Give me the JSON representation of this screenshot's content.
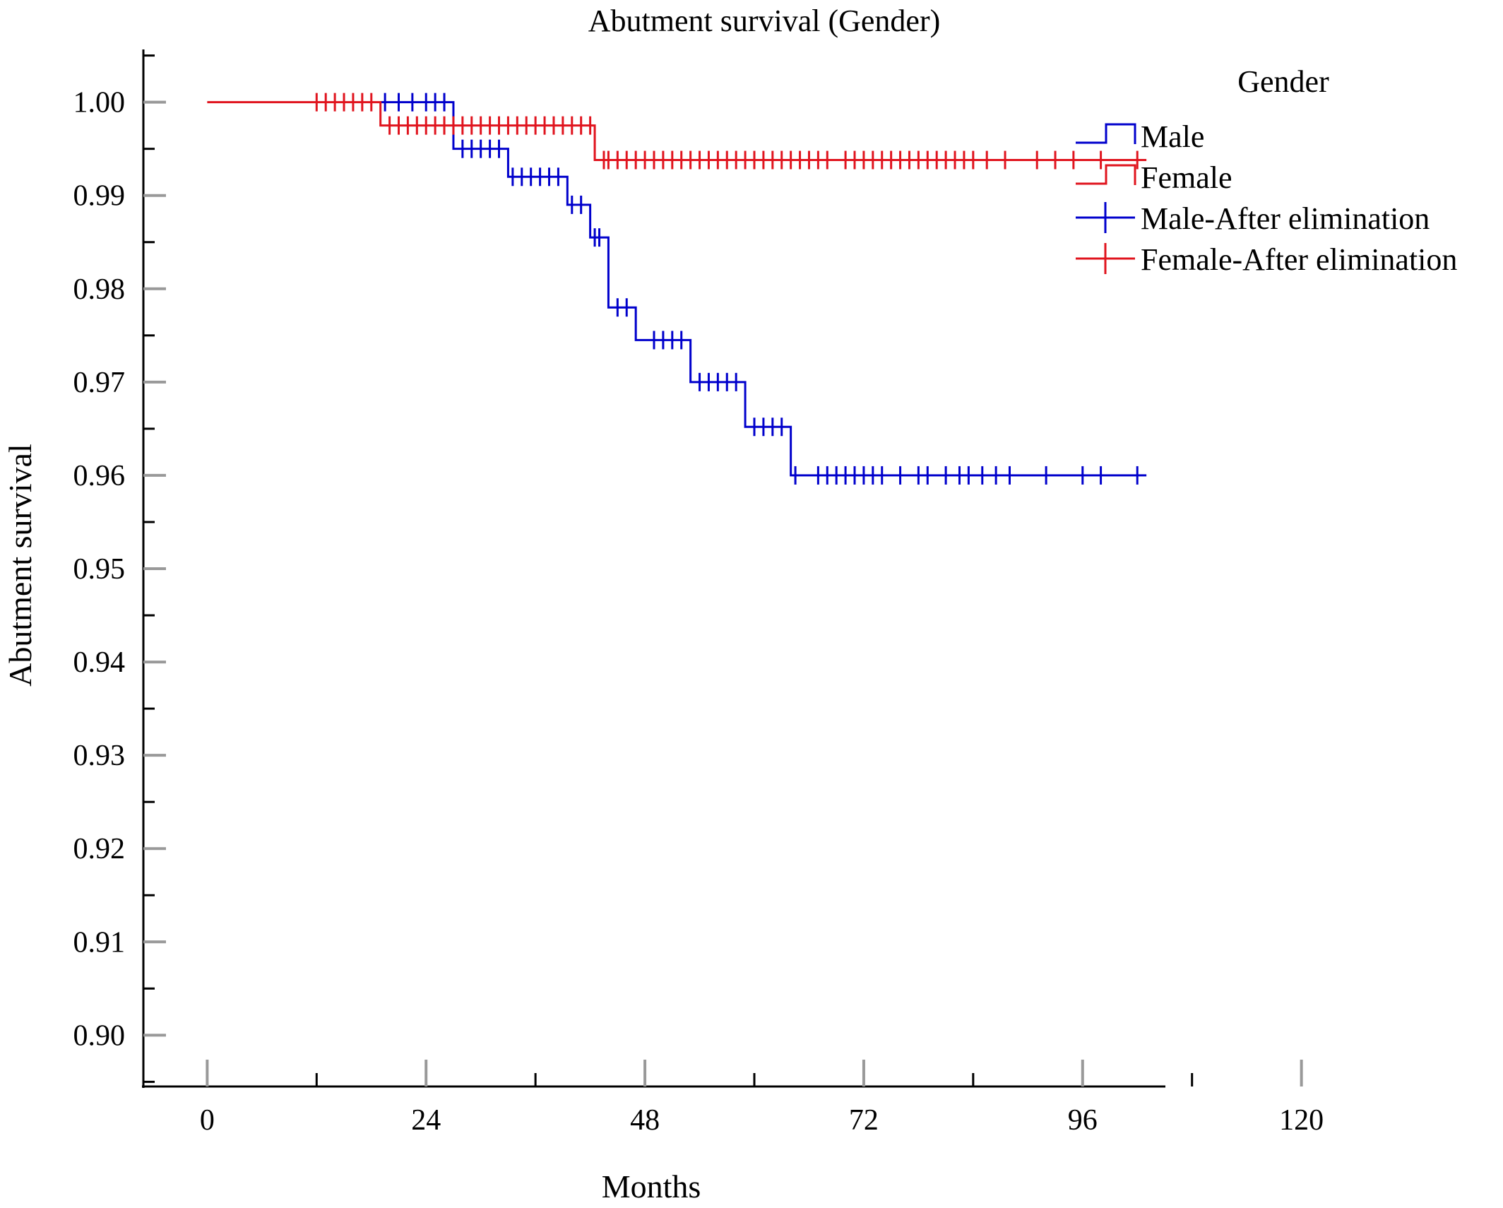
{
  "chart_data": {
    "type": "line",
    "subtype": "kaplan-meier",
    "title": "Abutment survival (Gender)",
    "xlabel": "Months",
    "ylabel": "Abutment survival",
    "xlim": [
      -7,
      127
    ],
    "ylim": [
      0.8945,
      1.0055
    ],
    "x_ticks": [
      0,
      24,
      48,
      72,
      96,
      120
    ],
    "x_minor_ticks": [
      12,
      36,
      60,
      84,
      108
    ],
    "y_ticks": [
      0.9,
      0.91,
      0.92,
      0.93,
      0.94,
      0.95,
      0.96,
      0.97,
      0.98,
      0.99,
      1.0
    ],
    "y_minor_ticks": [
      0.895,
      0.905,
      0.915,
      0.925,
      0.935,
      0.945,
      0.955,
      0.965,
      0.975,
      0.985,
      0.995,
      1.005
    ],
    "grid": false,
    "legend_title": "Gender",
    "legend_position": "top-right",
    "legend": [
      {
        "label": "Male",
        "marker": "step",
        "color": "#0000cc"
      },
      {
        "label": "Female",
        "marker": "step",
        "color": "#e0141e"
      },
      {
        "label": "Male-After elimination",
        "marker": "cross",
        "color": "#0000cc"
      },
      {
        "label": "Female-After elimination",
        "marker": "cross",
        "color": "#e0141e"
      }
    ],
    "series": [
      {
        "name": "Male",
        "color": "#0000cc",
        "steps": [
          {
            "x": 19,
            "y": 1.0
          },
          {
            "x": 27,
            "y": 0.995
          },
          {
            "x": 33,
            "y": 0.992
          },
          {
            "x": 39.5,
            "y": 0.989
          },
          {
            "x": 42,
            "y": 0.9855
          },
          {
            "x": 44,
            "y": 0.978
          },
          {
            "x": 47,
            "y": 0.9745
          },
          {
            "x": 53,
            "y": 0.97
          },
          {
            "x": 59,
            "y": 0.9652
          },
          {
            "x": 64,
            "y": 0.96
          },
          {
            "x": 103,
            "y": 0.96
          }
        ],
        "censored": [
          19.5,
          21,
          22.5,
          24,
          25,
          26,
          28,
          29,
          30,
          31,
          32,
          33.5,
          34.5,
          35.5,
          36.5,
          37.5,
          38.5,
          40,
          41,
          42.5,
          43,
          45,
          46,
          49,
          50,
          51,
          52,
          54,
          55,
          56,
          57,
          58,
          60,
          61,
          62,
          63,
          64.5,
          67,
          68,
          69,
          70,
          71,
          72,
          73,
          74,
          76,
          78,
          79,
          81,
          82.5,
          83.5,
          85,
          86.5,
          88,
          92,
          96,
          98,
          102
        ]
      },
      {
        "name": "Female",
        "color": "#e0141e",
        "steps": [
          {
            "x": 0,
            "y": 1.0
          },
          {
            "x": 19,
            "y": 0.9975
          },
          {
            "x": 42.5,
            "y": 0.9938
          },
          {
            "x": 103,
            "y": 0.9938
          }
        ],
        "censored": [
          12,
          13,
          14,
          15,
          16,
          17,
          18,
          20,
          21,
          22,
          23,
          24,
          25,
          26,
          27,
          28,
          29,
          30,
          31,
          32,
          33,
          34,
          35,
          36,
          37,
          38,
          39,
          40,
          41,
          42,
          43.5,
          44,
          45,
          46,
          47,
          48,
          49,
          50,
          51,
          52,
          53,
          54,
          55,
          56,
          57,
          58,
          59,
          60,
          61,
          62,
          63,
          64,
          65,
          66,
          67,
          68,
          70,
          71,
          72,
          73,
          74,
          75,
          76,
          77,
          78,
          79,
          80,
          81,
          82,
          83,
          84,
          85.5,
          87.5,
          91,
          93,
          95,
          98,
          102
        ]
      }
    ]
  }
}
